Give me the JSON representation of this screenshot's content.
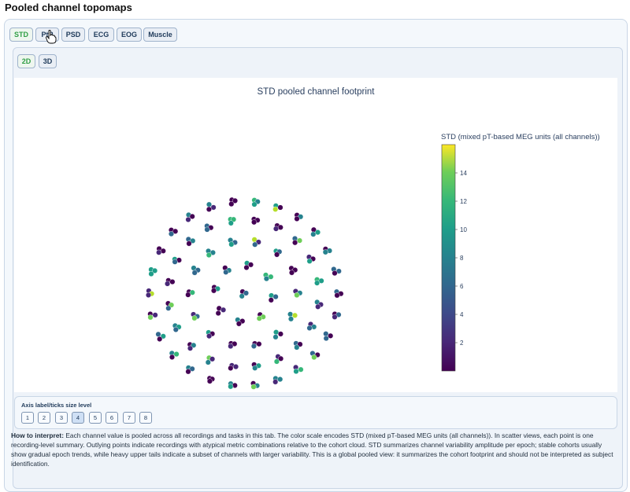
{
  "page": {
    "title": "Pooled channel topomaps"
  },
  "tabs": [
    {
      "label": "STD",
      "active": true
    },
    {
      "label": "PtP",
      "active": false
    },
    {
      "label": "PSD",
      "active": false
    },
    {
      "label": "ECG",
      "active": false
    },
    {
      "label": "EOG",
      "active": false
    },
    {
      "label": "Muscle",
      "active": false
    }
  ],
  "view_tabs": [
    {
      "label": "2D",
      "active": true
    },
    {
      "label": "3D",
      "active": false
    }
  ],
  "chart_data": {
    "type": "scatter",
    "title": "STD pooled channel footprint",
    "colorbar": {
      "title": "STD (mixed pT-based MEG units (all channels))",
      "ticks": [
        2,
        4,
        6,
        8,
        10,
        12,
        14
      ],
      "range": [
        0,
        16
      ],
      "colorscale": "viridis"
    }
  },
  "axis_size": {
    "label": "Axis label/ticks size level",
    "levels": [
      "1",
      "2",
      "3",
      "4",
      "5",
      "6",
      "7",
      "8"
    ],
    "selected": "4"
  },
  "interpretation": {
    "heading": "How to interpret:",
    "text": "Each channel value is pooled across all recordings and tasks in this tab. The color scale encodes STD (mixed pT-based MEG units (all channels)). In scatter views, each point is one recording-level summary. Outlying points indicate recordings with atypical metric combinations relative to the cohort cloud. STD summarizes channel variability amplitude per epoch; stable cohorts usually show gradual epoch trends, while heavy upper tails indicate a subset of channels with larger variability. This is a global pooled view: it summarizes the cohort footprint and should not be interpreted as subject identification."
  }
}
